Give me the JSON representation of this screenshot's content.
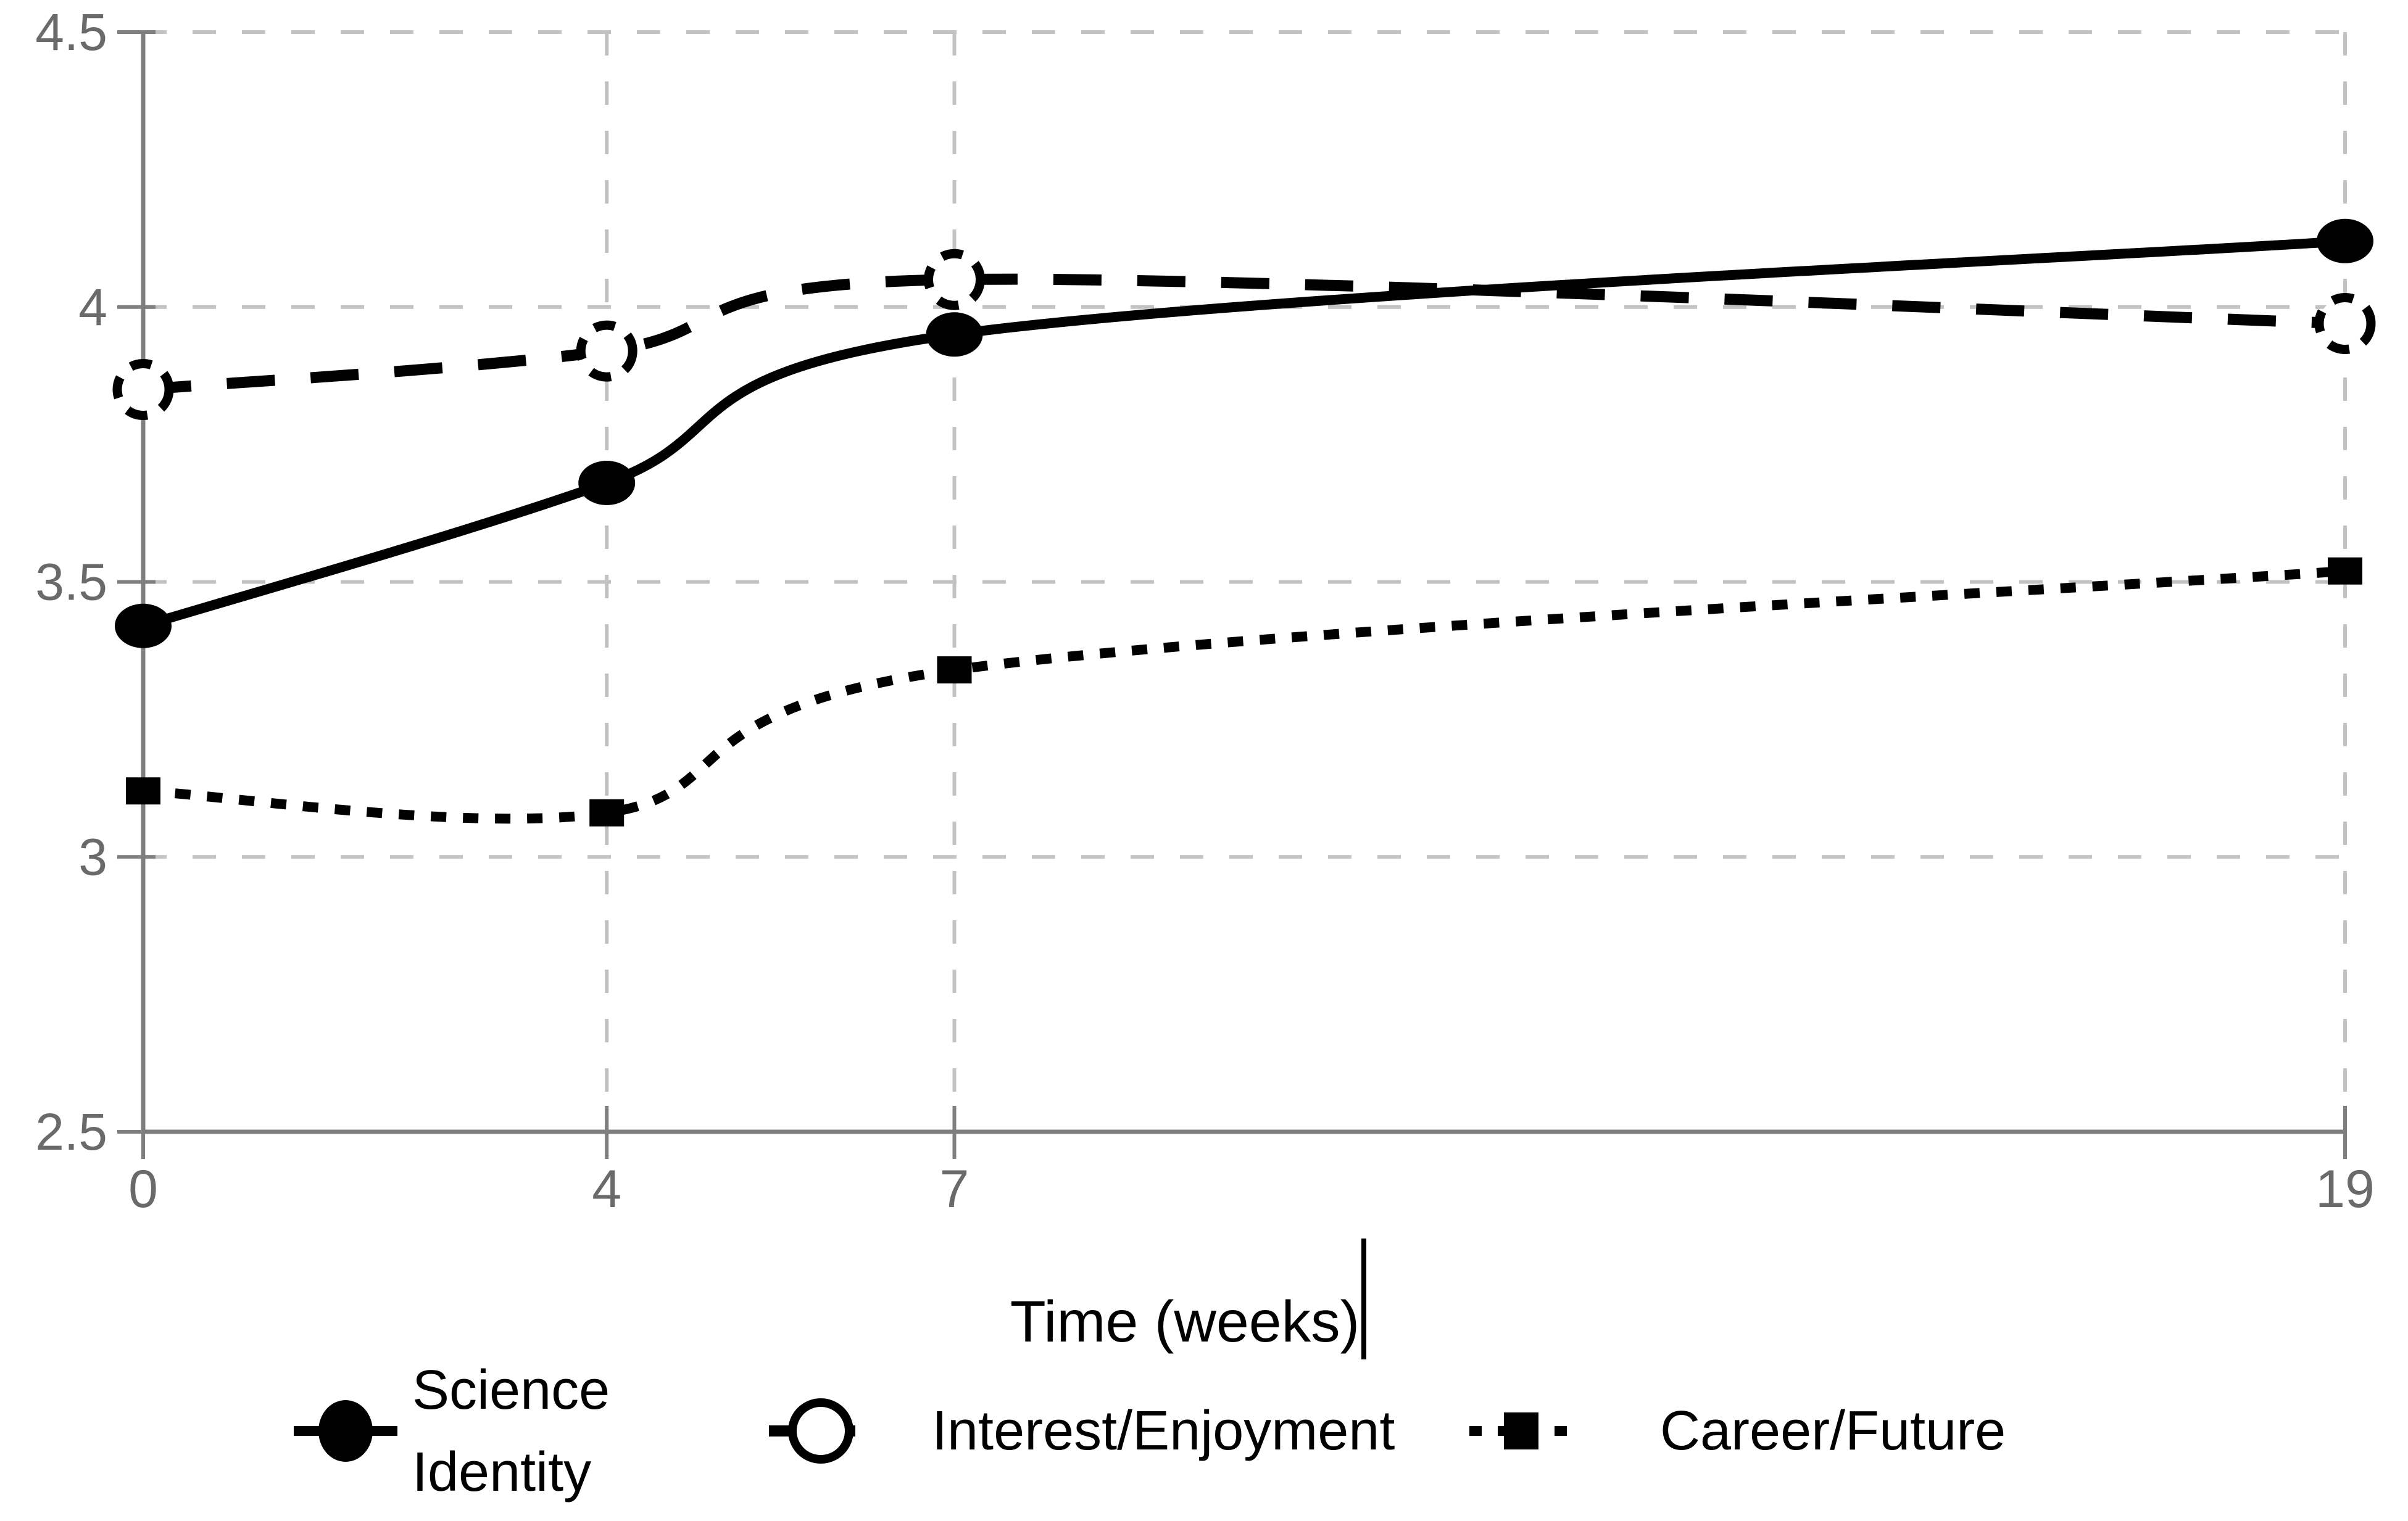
{
  "figure": {
    "background": "#ffffff",
    "axis_color": "#7f7f7f",
    "grid_color": "#c2c2c2",
    "tick_label_color": "#6a6a6a",
    "text_color": "#000000",
    "series_color": "#000000"
  },
  "chart_data": {
    "type": "line",
    "title": "",
    "xlabel": "Time (weeks)",
    "xlabel_cursor": "|",
    "ylabel": "",
    "x": [
      0,
      4,
      7,
      19
    ],
    "x_tick_labels": [
      "0",
      "4",
      "7",
      "19"
    ],
    "xlim": [
      0,
      19
    ],
    "y_ticks": [
      4.5,
      4,
      3.5,
      3,
      2.5
    ],
    "y_tick_labels": [
      "4.5",
      "4",
      "3.5",
      "3",
      "2.5"
    ],
    "ylim": [
      2.5,
      4.5
    ],
    "grid": true,
    "legend_position": "bottom",
    "series": [
      {
        "name": "Science Identity",
        "legend_lines": [
          "Science",
          "Identity"
        ],
        "line_style": "solid",
        "marker": "filled-circle",
        "values": [
          3.42,
          3.68,
          3.95,
          4.12
        ]
      },
      {
        "name": "Interest/Enjoyment",
        "legend_lines": [
          "Interest/Enjoyment"
        ],
        "line_style": "dashed",
        "marker": "open-circle",
        "values": [
          3.85,
          3.92,
          4.05,
          3.97
        ]
      },
      {
        "name": "Career/Future",
        "legend_lines": [
          "Career/Future"
        ],
        "line_style": "dotted",
        "marker": "filled-square",
        "values": [
          3.12,
          3.08,
          3.34,
          3.52
        ]
      }
    ]
  }
}
